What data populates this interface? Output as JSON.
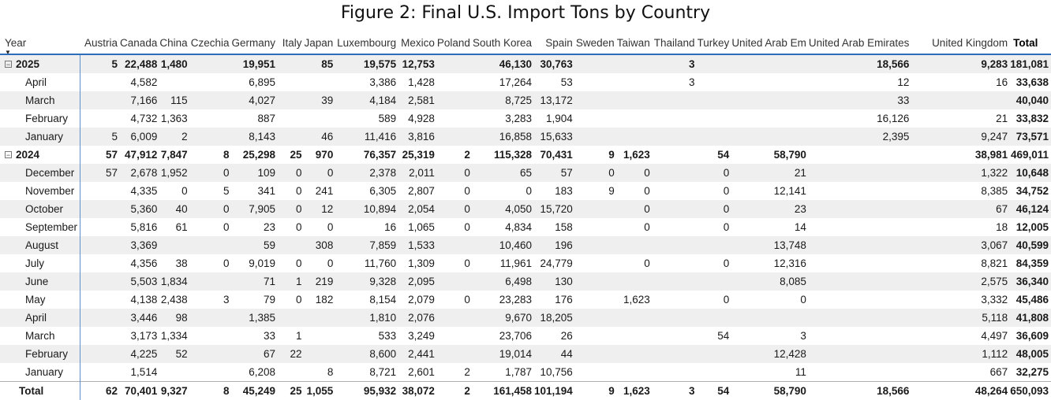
{
  "title": "Figure 2: Final U.S. Import Tons by Country",
  "chart_data": {
    "type": "table",
    "row_header": "Year",
    "columns": [
      "Austria",
      "Canada",
      "China",
      "Czechia",
      "Germany",
      "Italy",
      "Japan",
      "Luxembourg",
      "Mexico",
      "Poland",
      "South Korea",
      "Spain",
      "Sweden",
      "Taiwan",
      "Thailand",
      "Turkey",
      "United Arab Em",
      "United Arab Emirates",
      "United Kingdom",
      "Total"
    ],
    "rows": [
      {
        "label": "2025",
        "level": "year",
        "values": [
          "5",
          "22,488",
          "1,480",
          "",
          "19,951",
          "",
          "85",
          "19,575",
          "12,753",
          "",
          "46,130",
          "30,763",
          "",
          "",
          "3",
          "",
          "",
          "18,566",
          "9,283",
          "181,081"
        ]
      },
      {
        "label": "April",
        "level": "month",
        "values": [
          "",
          "4,582",
          "",
          "",
          "6,895",
          "",
          "",
          "3,386",
          "1,428",
          "",
          "17,264",
          "53",
          "",
          "",
          "3",
          "",
          "",
          "12",
          "16",
          "33,638"
        ]
      },
      {
        "label": "March",
        "level": "month",
        "values": [
          "",
          "7,166",
          "115",
          "",
          "4,027",
          "",
          "39",
          "4,184",
          "2,581",
          "",
          "8,725",
          "13,172",
          "",
          "",
          "",
          "",
          "",
          "33",
          "",
          "40,040"
        ]
      },
      {
        "label": "February",
        "level": "month",
        "values": [
          "",
          "4,732",
          "1,363",
          "",
          "887",
          "",
          "",
          "589",
          "4,928",
          "",
          "3,283",
          "1,904",
          "",
          "",
          "",
          "",
          "",
          "16,126",
          "21",
          "33,832"
        ]
      },
      {
        "label": "January",
        "level": "month",
        "values": [
          "5",
          "6,009",
          "2",
          "",
          "8,143",
          "",
          "46",
          "11,416",
          "3,816",
          "",
          "16,858",
          "15,633",
          "",
          "",
          "",
          "",
          "",
          "2,395",
          "9,247",
          "73,571"
        ]
      },
      {
        "label": "2024",
        "level": "year",
        "values": [
          "57",
          "47,912",
          "7,847",
          "8",
          "25,298",
          "25",
          "970",
          "76,357",
          "25,319",
          "2",
          "115,328",
          "70,431",
          "9",
          "1,623",
          "",
          "54",
          "58,790",
          "",
          "38,981",
          "469,011"
        ]
      },
      {
        "label": "December",
        "level": "month",
        "values": [
          "57",
          "2,678",
          "1,952",
          "0",
          "109",
          "0",
          "0",
          "2,378",
          "2,011",
          "0",
          "65",
          "57",
          "0",
          "0",
          "",
          "0",
          "21",
          "",
          "1,322",
          "10,648"
        ]
      },
      {
        "label": "November",
        "level": "month",
        "values": [
          "",
          "4,335",
          "0",
          "5",
          "341",
          "0",
          "241",
          "6,305",
          "2,807",
          "0",
          "0",
          "183",
          "9",
          "0",
          "",
          "0",
          "12,141",
          "",
          "8,385",
          "34,752"
        ]
      },
      {
        "label": "October",
        "level": "month",
        "values": [
          "",
          "5,360",
          "40",
          "0",
          "7,905",
          "0",
          "12",
          "10,894",
          "2,054",
          "0",
          "4,050",
          "15,720",
          "",
          "0",
          "",
          "0",
          "23",
          "",
          "67",
          "46,124"
        ]
      },
      {
        "label": "September",
        "level": "month",
        "values": [
          "",
          "5,816",
          "61",
          "0",
          "23",
          "0",
          "0",
          "16",
          "1,065",
          "0",
          "4,834",
          "158",
          "",
          "0",
          "",
          "0",
          "14",
          "",
          "18",
          "12,005"
        ]
      },
      {
        "label": "August",
        "level": "month",
        "values": [
          "",
          "3,369",
          "",
          "",
          "59",
          "",
          "308",
          "7,859",
          "1,533",
          "",
          "10,460",
          "196",
          "",
          "",
          "",
          "",
          "13,748",
          "",
          "3,067",
          "40,599"
        ]
      },
      {
        "label": "July",
        "level": "month",
        "values": [
          "",
          "4,356",
          "38",
          "0",
          "9,019",
          "0",
          "0",
          "11,760",
          "1,309",
          "0",
          "11,961",
          "24,779",
          "",
          "0",
          "",
          "0",
          "12,316",
          "",
          "8,821",
          "84,359"
        ]
      },
      {
        "label": "June",
        "level": "month",
        "values": [
          "",
          "5,503",
          "1,834",
          "",
          "71",
          "1",
          "219",
          "9,328",
          "2,095",
          "",
          "6,498",
          "130",
          "",
          "",
          "",
          "",
          "8,085",
          "",
          "2,575",
          "36,340"
        ]
      },
      {
        "label": "May",
        "level": "month",
        "values": [
          "",
          "4,138",
          "2,438",
          "3",
          "79",
          "0",
          "182",
          "8,154",
          "2,079",
          "0",
          "23,283",
          "176",
          "",
          "1,623",
          "",
          "0",
          "0",
          "",
          "3,332",
          "45,486"
        ]
      },
      {
        "label": "April",
        "level": "month",
        "values": [
          "",
          "3,446",
          "98",
          "",
          "1,385",
          "",
          "",
          "1,810",
          "2,076",
          "",
          "9,670",
          "18,205",
          "",
          "",
          "",
          "",
          "",
          "",
          "5,118",
          "41,808"
        ]
      },
      {
        "label": "March",
        "level": "month",
        "values": [
          "",
          "3,173",
          "1,334",
          "",
          "33",
          "1",
          "",
          "533",
          "3,249",
          "",
          "23,706",
          "26",
          "",
          "",
          "",
          "54",
          "3",
          "",
          "4,497",
          "36,609"
        ]
      },
      {
        "label": "February",
        "level": "month",
        "values": [
          "",
          "4,225",
          "52",
          "",
          "67",
          "22",
          "",
          "8,600",
          "2,441",
          "",
          "19,014",
          "44",
          "",
          "",
          "",
          "",
          "12,428",
          "",
          "1,112",
          "48,005"
        ]
      },
      {
        "label": "January",
        "level": "month",
        "values": [
          "",
          "1,514",
          "",
          "",
          "6,208",
          "",
          "8",
          "8,721",
          "2,601",
          "2",
          "1,787",
          "10,756",
          "",
          "",
          "",
          "",
          "11",
          "",
          "667",
          "32,275"
        ]
      }
    ],
    "total_row": {
      "label": "Total",
      "values": [
        "62",
        "70,401",
        "9,327",
        "8",
        "45,249",
        "25",
        "1,055",
        "95,932",
        "38,072",
        "2",
        "161,458",
        "101,194",
        "9",
        "1,623",
        "3",
        "54",
        "58,790",
        "18,566",
        "48,264",
        "650,093"
      ]
    }
  }
}
